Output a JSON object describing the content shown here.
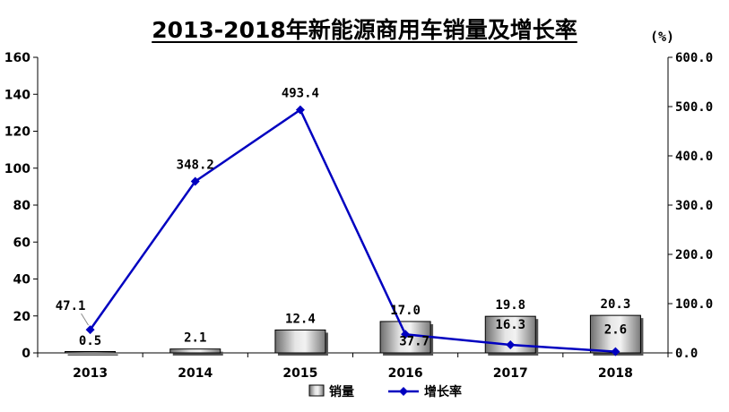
{
  "chart_data": {
    "type": "bar+line",
    "title": "2013-2018年新能源商用车销量及增长率",
    "categories": [
      "2013",
      "2014",
      "2015",
      "2016",
      "2017",
      "2018"
    ],
    "series": [
      {
        "name": "销量",
        "type": "bar",
        "axis": "left",
        "values": [
          0.5,
          2.1,
          12.4,
          17.0,
          19.8,
          20.3
        ],
        "labels": [
          "0.5",
          "2.1",
          "12.4",
          "17.0",
          "19.8",
          "20.3"
        ]
      },
      {
        "name": "增长率",
        "type": "line",
        "axis": "right",
        "values": [
          47.1,
          348.2,
          493.4,
          37.7,
          16.3,
          2.6
        ],
        "labels": [
          "47.1",
          "348.2",
          "493.4",
          "37.7",
          "16.3",
          "2.6"
        ],
        "color": "#0000c0"
      }
    ],
    "yleft": {
      "min": 0,
      "max": 160,
      "ticks": [
        "0",
        "20",
        "40",
        "60",
        "80",
        "100",
        "120",
        "140",
        "160"
      ]
    },
    "yright": {
      "min": 0,
      "max": 600,
      "unit": "(%)",
      "ticks": [
        "0.0",
        "100.0",
        "200.0",
        "300.0",
        "400.0",
        "500.0",
        "600.0"
      ]
    },
    "grid": false,
    "legend": "bottom-center"
  }
}
